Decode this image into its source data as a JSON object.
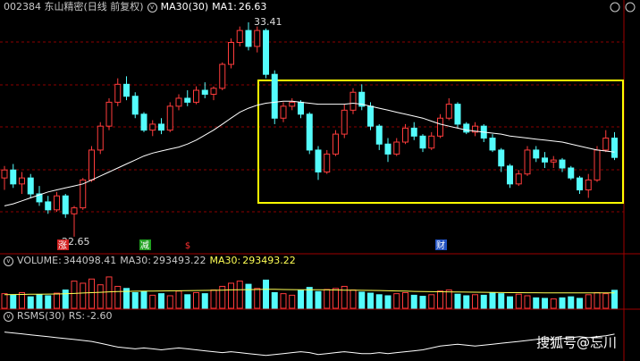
{
  "chart_data": {
    "type": "candlestick",
    "title": "002384 东山精密(日线 前复权)",
    "ma_name": "MA30(30)",
    "ma1_name": "MA1:",
    "up_color": "#ff3c3c",
    "down_color": "#54fcfc",
    "ylim": [
      21.84,
      34.53
    ],
    "open": [
      25.6,
      26.0,
      25.3,
      25.6,
      24.8,
      24.4,
      24.0,
      24.7,
      23.8,
      24.1,
      25.5,
      27.0,
      28.2,
      29.4,
      30.3,
      29.7,
      28.8,
      28.0,
      28.3,
      28.0,
      29.2,
      29.6,
      29.4,
      30.0,
      29.8,
      30.1,
      31.3,
      32.4,
      33.0,
      32.2,
      33.0,
      30.8,
      28.6,
      29.2,
      29.4,
      28.8,
      27.0,
      25.9,
      26.8,
      27.8,
      29.0,
      29.9,
      29.2,
      28.2,
      27.3,
      26.8,
      27.4,
      28.1,
      27.7,
      27.1,
      27.7,
      28.6,
      29.3,
      28.3,
      27.9,
      28.2,
      27.6,
      27.0,
      26.2,
      25.3,
      25.8,
      27.0,
      26.6,
      26.4,
      26.5,
      26.1,
      25.6,
      25.0,
      25.5,
      27.0,
      27.6
    ],
    "high": [
      26.2,
      26.3,
      25.9,
      25.8,
      25.2,
      24.7,
      24.9,
      24.8,
      24.2,
      25.6,
      27.2,
      28.4,
      29.6,
      30.6,
      30.7,
      29.9,
      28.9,
      28.5,
      28.6,
      29.4,
      29.8,
      30.0,
      30.2,
      30.4,
      30.2,
      31.4,
      32.6,
      33.2,
      33.41,
      33.2,
      33.1,
      31.0,
      29.4,
      29.6,
      29.5,
      28.9,
      27.2,
      27.0,
      28.0,
      29.3,
      30.1,
      30.3,
      29.4,
      28.3,
      27.6,
      27.6,
      28.3,
      28.4,
      27.8,
      27.9,
      28.8,
      29.6,
      29.4,
      28.4,
      28.4,
      28.3,
      27.8,
      27.1,
      26.3,
      26.0,
      27.2,
      27.2,
      26.9,
      26.7,
      26.6,
      26.2,
      25.7,
      25.8,
      27.2,
      28.0,
      27.9
    ],
    "low": [
      25.0,
      25.1,
      24.8,
      24.6,
      24.2,
      23.8,
      23.9,
      23.6,
      22.65,
      24.0,
      25.4,
      26.8,
      28.0,
      29.2,
      29.5,
      28.6,
      27.9,
      27.7,
      27.8,
      27.9,
      29.0,
      29.2,
      29.3,
      29.6,
      29.5,
      30.0,
      31.1,
      32.2,
      32.0,
      31.9,
      30.6,
      28.3,
      28.4,
      29.0,
      28.6,
      26.8,
      25.5,
      25.8,
      26.7,
      27.6,
      28.8,
      29.0,
      28.0,
      27.0,
      26.4,
      26.7,
      27.3,
      27.5,
      26.9,
      27.0,
      27.6,
      28.5,
      28.1,
      27.8,
      27.7,
      27.4,
      26.9,
      25.9,
      25.1,
      25.2,
      25.7,
      26.4,
      26.1,
      26.1,
      25.9,
      25.5,
      24.8,
      24.6,
      25.4,
      26.9,
      26.5
    ],
    "close": [
      26.0,
      25.3,
      25.6,
      24.8,
      24.4,
      24.0,
      24.7,
      23.8,
      24.1,
      25.5,
      27.0,
      28.2,
      29.4,
      30.3,
      29.7,
      28.8,
      28.0,
      28.3,
      28.0,
      29.2,
      29.6,
      29.4,
      30.0,
      29.8,
      30.1,
      31.3,
      32.4,
      33.0,
      32.2,
      33.0,
      30.8,
      28.6,
      29.2,
      29.4,
      28.8,
      27.0,
      25.9,
      26.8,
      27.8,
      29.0,
      29.9,
      29.2,
      28.2,
      27.3,
      26.8,
      27.4,
      28.1,
      27.7,
      27.1,
      27.7,
      28.6,
      29.3,
      28.3,
      27.9,
      28.2,
      27.6,
      27.0,
      26.2,
      25.3,
      25.8,
      27.0,
      26.6,
      26.4,
      26.5,
      26.1,
      25.6,
      25.0,
      25.5,
      27.0,
      27.6,
      26.63
    ],
    "ma": {
      "color": "#ffffff",
      "values": [
        24.2,
        24.3,
        24.45,
        24.6,
        24.75,
        24.9,
        25.0,
        25.1,
        25.2,
        25.3,
        25.5,
        25.7,
        25.9,
        26.1,
        26.3,
        26.5,
        26.7,
        26.85,
        26.95,
        27.05,
        27.15,
        27.3,
        27.5,
        27.75,
        28.0,
        28.3,
        28.6,
        28.9,
        29.1,
        29.25,
        29.35,
        29.4,
        29.45,
        29.45,
        29.4,
        29.35,
        29.3,
        29.3,
        29.3,
        29.3,
        29.35,
        29.3,
        29.2,
        29.1,
        29.0,
        28.9,
        28.8,
        28.7,
        28.6,
        28.45,
        28.3,
        28.2,
        28.1,
        28.0,
        27.95,
        27.9,
        27.85,
        27.8,
        27.7,
        27.65,
        27.6,
        27.55,
        27.5,
        27.45,
        27.4,
        27.3,
        27.2,
        27.1,
        27.0,
        26.95,
        26.9
      ]
    },
    "markers": [
      "涨",
      "减",
      "$",
      "财"
    ],
    "volume": {
      "name": "VOLUME:",
      "ma_name": "MA30:",
      "ylim": [
        0,
        770000
      ],
      "ma_color": "#ffff54",
      "values": [
        280000,
        250000,
        300000,
        220000,
        260000,
        240000,
        290000,
        350000,
        520000,
        480000,
        560000,
        450000,
        600000,
        420000,
        380000,
        300000,
        320000,
        250000,
        280000,
        240000,
        330000,
        260000,
        300000,
        280000,
        350000,
        420000,
        480000,
        520000,
        460000,
        380000,
        540000,
        300000,
        280000,
        250000,
        340000,
        400000,
        320000,
        360000,
        380000,
        420000,
        350000,
        310000,
        290000,
        260000,
        240000,
        280000,
        300000,
        250000,
        230000,
        260000,
        330000,
        350000,
        270000,
        240000,
        260000,
        250000,
        300000,
        280000,
        220000,
        270000,
        240000,
        200000,
        190000,
        180000,
        200000,
        220000,
        190000,
        260000,
        300000,
        280000,
        344098.41
      ],
      "ma": [
        262000,
        264000,
        266000,
        268000,
        270000,
        272000,
        274000,
        278000,
        284000,
        292000,
        300000,
        306000,
        314000,
        320000,
        324000,
        326000,
        328000,
        330000,
        332000,
        334000,
        336000,
        338000,
        340000,
        342000,
        344000,
        348000,
        352000,
        356000,
        358000,
        360000,
        364000,
        362000,
        360000,
        358000,
        356000,
        356000,
        354000,
        352000,
        350000,
        348000,
        346000,
        344000,
        342000,
        340000,
        336000,
        332000,
        328000,
        324000,
        320000,
        318000,
        316000,
        314000,
        312000,
        310000,
        308000,
        306000,
        304000,
        302000,
        300000,
        299000,
        298000,
        297000,
        296000,
        295500,
        295000,
        294500,
        294000,
        293800,
        293600,
        293500,
        293493.22
      ]
    },
    "rs": {
      "name": "RSMS(30)",
      "value_name": "RS:",
      "value_label": "-2.60",
      "color": "#ffffff",
      "ylim": [
        -16,
        4
      ],
      "values": [
        -1.5,
        -2,
        -2.5,
        -3,
        -3.5,
        -4,
        -4.5,
        -5,
        -5.5,
        -6,
        -6.5,
        -7.5,
        -8.5,
        -9.5,
        -10,
        -10.5,
        -10,
        -10.5,
        -11,
        -10.5,
        -10,
        -10.5,
        -11,
        -11.5,
        -12,
        -12.5,
        -12,
        -12.5,
        -13,
        -13.5,
        -14,
        -13.5,
        -13,
        -12.5,
        -12,
        -12.5,
        -13.5,
        -13,
        -12.5,
        -12,
        -12.5,
        -13,
        -13,
        -12.5,
        -13,
        -12.5,
        -12,
        -11.5,
        -11,
        -10,
        -9,
        -8.5,
        -8,
        -8.5,
        -9,
        -8.5,
        -8,
        -7.5,
        -7,
        -6.5,
        -6,
        -5.5,
        -5,
        -5.5,
        -5,
        -4.5,
        -4,
        -4.5,
        -4,
        -3.5,
        -2.6
      ]
    },
    "watermark": "搜狐号@忘川"
  }
}
